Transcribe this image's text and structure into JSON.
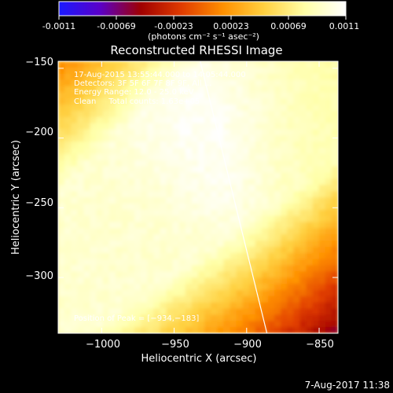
{
  "colorbar": {
    "tick_labels": [
      "-0.0011",
      "-0.00069",
      "-0.00023",
      "0.00023",
      "0.00069",
      "0.0011"
    ],
    "range": [
      -0.0011,
      0.0011
    ],
    "unit_label": "(photons cm⁻² s⁻¹ asec⁻²)",
    "colormap": [
      "#1a1aff",
      "#5a00c8",
      "#a00000",
      "#e03c00",
      "#ff9000",
      "#ffd040",
      "#ffffa8",
      "#ffffff"
    ]
  },
  "chart_data": {
    "type": "heatmap",
    "title": "Reconstructed RHESSI Image",
    "xlabel": "Heliocentric X (arcsec)",
    "ylabel": "Heliocentric Y (arcsec)",
    "xlim": [
      -1030,
      -837
    ],
    "ylim": [
      -340,
      -145
    ],
    "x_ticks": [
      -1000,
      -950,
      -900,
      -850
    ],
    "x_tick_labels": [
      "−1000",
      "−950",
      "−900",
      "−850"
    ],
    "y_ticks": [
      -150,
      -200,
      -250,
      -300
    ],
    "y_tick_labels": [
      "−150",
      "−200",
      "−250",
      "−300"
    ],
    "annotations": [
      "17-Aug-2015 13:55:44.000 to 14:05:44.000",
      "Detectors: 3F 5F 6F 7F 8F 9F, All ...",
      "Energy Range: 12.0 - 25.0 keV",
      "Clean     Total counts: 1.63e+05"
    ],
    "peak_label": "Position of Peak = [−934,−183]",
    "peak": [
      -934,
      -183
    ],
    "limb_line": [
      [
        -932,
        -145
      ],
      [
        -886,
        -340
      ]
    ]
  },
  "footer": {
    "timestamp": "7-Aug-2017 11:38"
  }
}
